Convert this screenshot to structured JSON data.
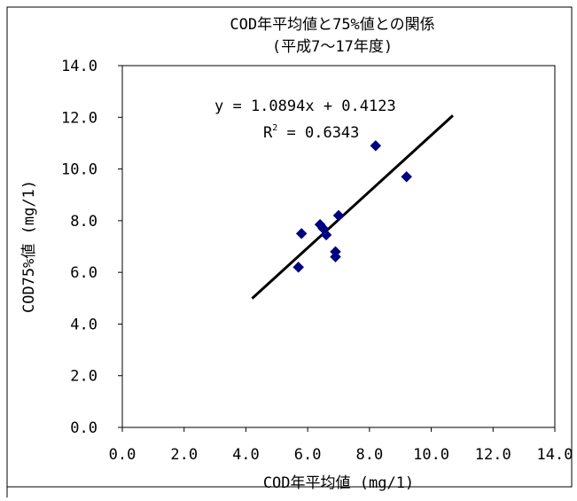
{
  "chart_data": {
    "type": "scatter",
    "title": "COD年平均値と75%値との関係",
    "subtitle": "(平成7～17年度)",
    "xlabel": "COD年平均値 (mg/1)",
    "ylabel": "COD75%値 (mg/1)",
    "xlim": [
      0,
      14
    ],
    "ylim": [
      0,
      14
    ],
    "x_ticks": [
      "0.0",
      "2.0",
      "4.0",
      "6.0",
      "8.0",
      "10.0",
      "12.0",
      "14.0"
    ],
    "y_ticks": [
      "0.0",
      "2.0",
      "4.0",
      "6.0",
      "8.0",
      "10.0",
      "12.0",
      "14.0"
    ],
    "grid": false,
    "legend": "none",
    "point_color": "#000080",
    "line_color": "#000000",
    "points": [
      {
        "x": 5.7,
        "y": 6.2
      },
      {
        "x": 5.8,
        "y": 7.5
      },
      {
        "x": 6.4,
        "y": 7.85
      },
      {
        "x": 6.5,
        "y": 7.7
      },
      {
        "x": 6.6,
        "y": 7.45
      },
      {
        "x": 6.9,
        "y": 6.8
      },
      {
        "x": 6.9,
        "y": 6.6
      },
      {
        "x": 7.0,
        "y": 8.2
      },
      {
        "x": 8.2,
        "y": 10.9
      },
      {
        "x": 9.2,
        "y": 9.7
      }
    ],
    "trendline": {
      "slope": 1.0894,
      "intercept": 0.4123,
      "x_range": [
        4.2,
        10.7
      ],
      "equation": "y = 1.0894x + 0.4123",
      "r2_prefix": "R",
      "r2_exp": "2",
      "r2_value": " = 0.6343"
    }
  }
}
